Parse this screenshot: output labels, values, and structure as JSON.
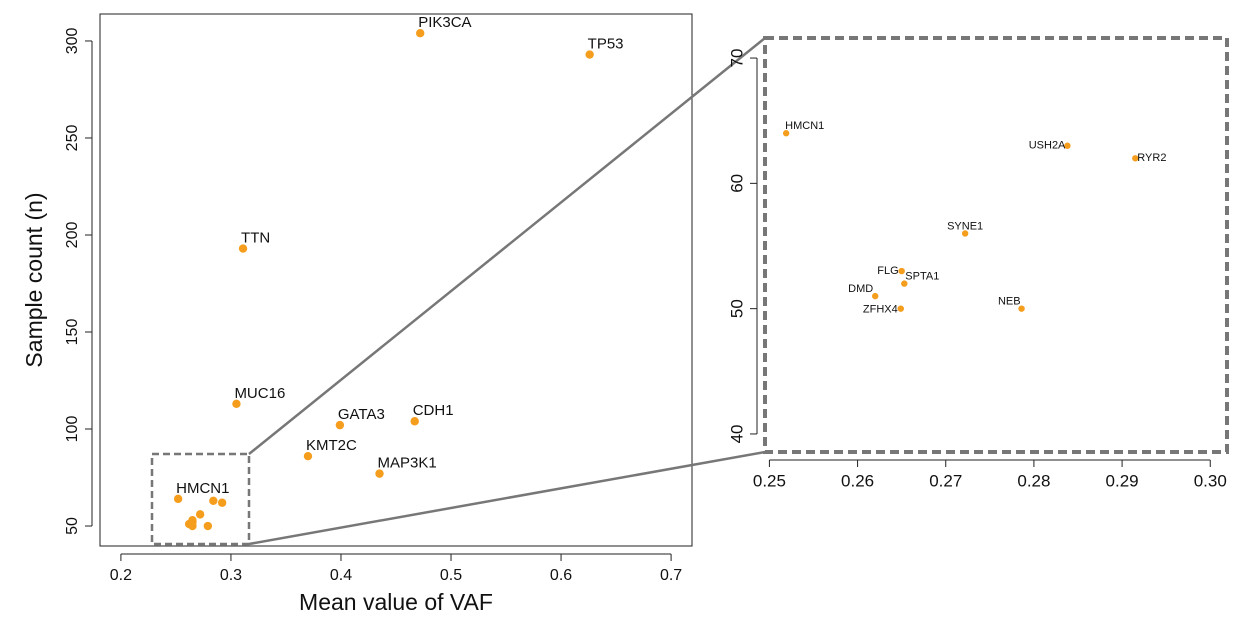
{
  "chart_data": [
    {
      "type": "scatter",
      "x_label": "Mean value of VAF",
      "y_label": "Sample count (n)",
      "color": "#f59d1c",
      "labels": [
        "PIK3CA",
        "TP53",
        "TTN",
        "MUC16",
        "GATA3",
        "CDH1",
        "KMT2C",
        "MAP3K1",
        "HMCN1",
        null,
        null,
        null,
        null,
        null,
        null,
        null,
        null
      ],
      "x": [
        0.472,
        0.626,
        0.311,
        0.305,
        0.399,
        0.467,
        0.37,
        0.435,
        0.252,
        0.284,
        0.292,
        0.272,
        0.265,
        0.265,
        0.262,
        0.265,
        0.279
      ],
      "values": [
        304,
        293,
        193,
        113,
        102,
        104,
        86,
        77,
        64,
        63,
        62,
        56,
        53,
        52,
        51,
        50,
        50
      ],
      "xlim": [
        0.181,
        0.719
      ],
      "ylim": [
        39.7,
        313.9
      ],
      "xticks": [
        0.2,
        0.3,
        0.4,
        0.5,
        0.6,
        0.7
      ],
      "yticks": [
        50,
        100,
        150,
        200,
        250,
        300
      ]
    },
    {
      "type": "scatter",
      "color": "#f59d1c",
      "labels": [
        "HMCN1",
        "USH2A",
        "RYR2",
        "SYNE1",
        "FLG",
        "SPTA1",
        "DMD",
        "ZFHX4",
        "NEB"
      ],
      "x": [
        0.2519,
        0.2838,
        0.2915,
        0.2722,
        0.265,
        0.2653,
        0.262,
        0.2649,
        0.2786
      ],
      "values": [
        64,
        63,
        62,
        56,
        53,
        52,
        51,
        50,
        50
      ],
      "xlim": [
        0.2495,
        0.3019
      ],
      "ylim": [
        38.56,
        71.6
      ],
      "xticks": [
        0.25,
        0.26,
        0.27,
        0.28,
        0.29,
        {
          "value": 0.3,
          "label": "0.30"
        }
      ],
      "yticks": [
        40,
        50,
        60,
        70
      ]
    }
  ]
}
